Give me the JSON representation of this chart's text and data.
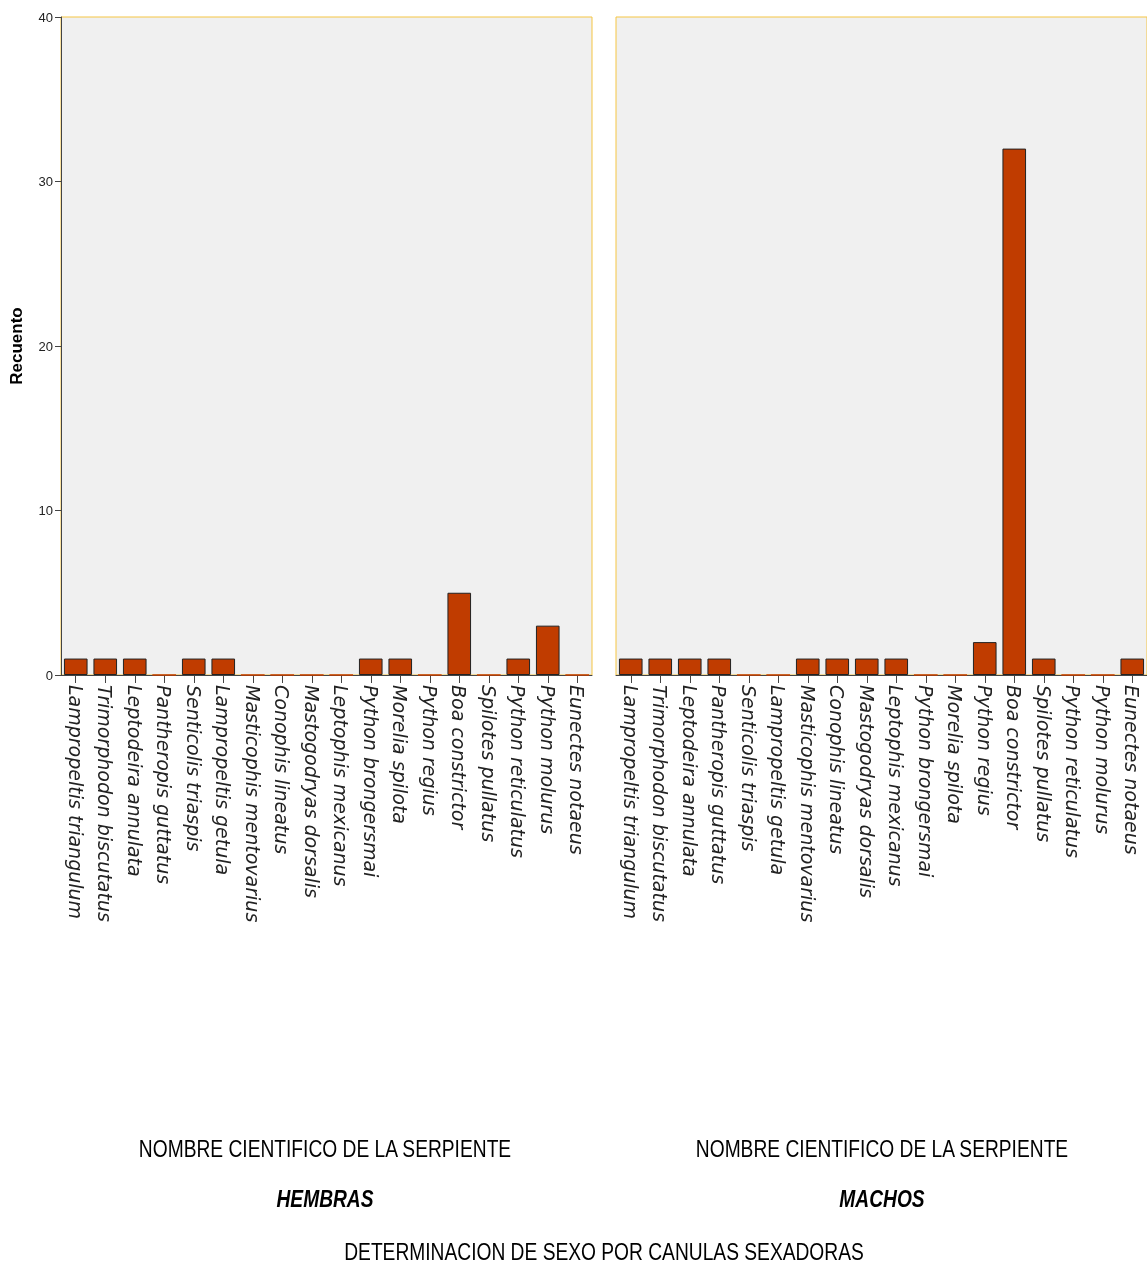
{
  "chart_data": [
    {
      "type": "bar",
      "subtitle": "HEMBRAS",
      "xlabel": "NOMBRE CIENTIFICO DE LA SERPIENTE",
      "ylabel": "Recuento",
      "color": "#c03c00",
      "categories": [
        "Lampropeltis triangulum",
        "Trimorphodon biscutatus",
        "Leptodeira annulata",
        "Pantheropis guttatus",
        "Senticolis triaspis",
        "Lampropeltis getula",
        "Masticophis mentovarius",
        "Conophis lineatus",
        "Mastogodryas dorsalis",
        "Leptophis mexicanus",
        "Python brongersmai",
        "Morelia spilota",
        "Python regius",
        "Boa constrictor",
        "Spilotes pullatus",
        "Python reticulatus",
        "Python molurus",
        "Eunectes notaeus"
      ],
      "values": [
        1,
        1,
        1,
        0,
        1,
        1,
        0,
        0,
        0,
        0,
        1,
        1,
        0,
        5,
        0,
        1,
        3,
        0
      ],
      "ylim": [
        0,
        40
      ],
      "yticks": [
        0,
        10,
        20,
        30,
        40
      ],
      "annotations": [
        "DETERMINACION DE SEXO POR CANULAS SEXADORAS"
      ]
    },
    {
      "type": "bar",
      "subtitle": "MACHOS",
      "xlabel": "NOMBRE CIENTIFICO DE LA SERPIENTE",
      "color": "#c03c00",
      "categories": [
        "Lampropeltis triangulum",
        "Trimorphodon biscutatus",
        "Leptodeira annulata",
        "Pantheropis guttatus",
        "Senticolis triaspis",
        "Lampropeltis getula",
        "Masticophis mentovarius",
        "Conophis lineatus",
        "Mastogodryas dorsalis",
        "Leptophis mexicanus",
        "Python brongersmai",
        "Morelia spilota",
        "Python regius",
        "Boa constrictor",
        "Spilotes pullatus",
        "Python reticulatus",
        "Python molurus",
        "Eunectes notaeus"
      ],
      "values": [
        1,
        1,
        1,
        1,
        0,
        0,
        1,
        1,
        1,
        1,
        0,
        0,
        2,
        32,
        1,
        0,
        0,
        1
      ],
      "ylim": [
        0,
        40
      ],
      "yticks": [
        0,
        10,
        20,
        30,
        40
      ],
      "tick_labels": "x"
    }
  ]
}
